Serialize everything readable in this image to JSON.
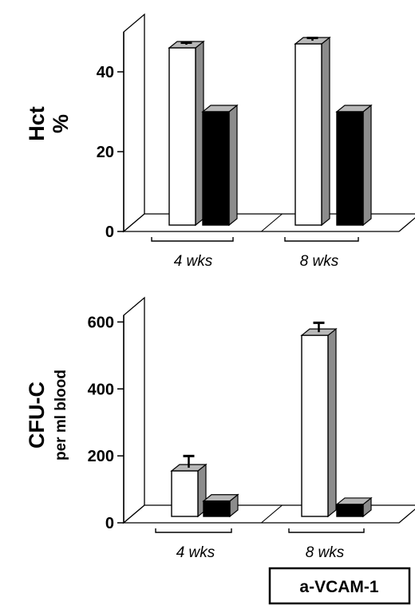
{
  "colors": {
    "front_white": "#ffffff",
    "front_black": "#000000",
    "side_gray": "#8c8c8c",
    "top_gray": "#b8b8b8",
    "outline": "#000000"
  },
  "legend": {
    "label": "a-VCAM-1"
  },
  "chart_data": [
    {
      "type": "bar",
      "ylabel_lines": [
        "Hct",
        "%"
      ],
      "ylim": [
        0,
        50
      ],
      "yticks": [
        0,
        20,
        40
      ],
      "categories": [
        "4 wks",
        "8 wks"
      ],
      "series": [
        {
          "fill": "white",
          "values": [
            46,
            47
          ],
          "errors": [
            0.5,
            0.7
          ]
        },
        {
          "fill": "black",
          "values": [
            30,
            30
          ],
          "errors": [
            0,
            0
          ]
        }
      ],
      "grid": false
    },
    {
      "type": "bar",
      "ylabel_lines": [
        "CFU-C",
        "per ml blood"
      ],
      "ylim": [
        0,
        620
      ],
      "yticks": [
        0,
        200,
        400,
        600
      ],
      "categories": [
        "4 wks",
        "8 wks"
      ],
      "series": [
        {
          "fill": "white",
          "values": [
            155,
            560
          ],
          "errors": [
            35,
            28
          ]
        },
        {
          "fill": "black",
          "values": [
            65,
            55
          ],
          "errors": [
            0,
            0
          ]
        }
      ],
      "grid": false
    }
  ]
}
